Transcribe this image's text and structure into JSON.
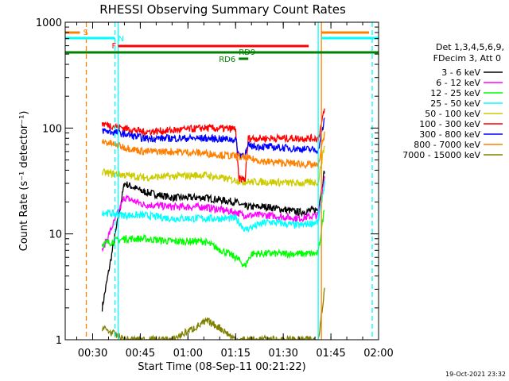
{
  "chart_data": {
    "type": "line",
    "title": "RHESSI Observing Summary Count Rates",
    "xlabel": "Start Time (08-Sep-11 00:21:22)",
    "ylabel": "Count Rate (s⁻¹ detector⁻¹)",
    "y_scale": "log",
    "ylim": [
      1,
      1000
    ],
    "xlim": [
      "00:21:22",
      "02:00:00"
    ],
    "x_ticks": [
      "00:30",
      "00:45",
      "01:00",
      "01:15",
      "01:30",
      "01:45",
      "02:00"
    ],
    "y_ticks": [
      "1",
      "10",
      "100",
      "1000"
    ],
    "timestamp": "19-Oct-2021 23:32",
    "legend": {
      "header1": "Det 1,3,4,5,6,9,",
      "header2": "FDecim 3, Att 0"
    },
    "series": [
      {
        "name": "3 - 6 keV",
        "color": "#000000",
        "points": [
          [
            "00:33",
            2
          ],
          [
            "00:40",
            30
          ],
          [
            "00:46",
            25
          ],
          [
            "00:55",
            22
          ],
          [
            "01:05",
            22
          ],
          [
            "01:15",
            20
          ],
          [
            "01:18",
            18
          ],
          [
            "01:25",
            18
          ],
          [
            "01:35",
            16
          ],
          [
            "01:41",
            17
          ],
          [
            "01:43",
            40
          ]
        ]
      },
      {
        "name": "6 - 12 keV",
        "color": "#ff00ff",
        "points": [
          [
            "00:33",
            7
          ],
          [
            "00:40",
            22
          ],
          [
            "00:46",
            19
          ],
          [
            "00:55",
            18
          ],
          [
            "01:05",
            18
          ],
          [
            "01:15",
            16
          ],
          [
            "01:18",
            15
          ],
          [
            "01:25",
            15
          ],
          [
            "01:35",
            14
          ],
          [
            "01:41",
            15
          ],
          [
            "01:43",
            35
          ]
        ]
      },
      {
        "name": "12 - 25 keV",
        "color": "#00ff00",
        "points": [
          [
            "00:33",
            8
          ],
          [
            "00:40",
            9
          ],
          [
            "00:46",
            9
          ],
          [
            "00:55",
            8.5
          ],
          [
            "01:05",
            8.5
          ],
          [
            "01:15",
            6
          ],
          [
            "01:18",
            5
          ],
          [
            "01:20",
            6.5
          ],
          [
            "01:30",
            6.5
          ],
          [
            "01:41",
            6.5
          ],
          [
            "01:43",
            18
          ]
        ]
      },
      {
        "name": "25 - 50 keV",
        "color": "#00ffff",
        "points": [
          [
            "00:33",
            16
          ],
          [
            "00:40",
            15
          ],
          [
            "00:46",
            15
          ],
          [
            "00:55",
            14
          ],
          [
            "01:05",
            14
          ],
          [
            "01:15",
            14
          ],
          [
            "01:18",
            11
          ],
          [
            "01:25",
            13
          ],
          [
            "01:35",
            12
          ],
          [
            "01:41",
            13
          ],
          [
            "01:43",
            30
          ]
        ]
      },
      {
        "name": "50 - 100 keV",
        "color": "#cccc00",
        "points": [
          [
            "00:33",
            38
          ],
          [
            "00:40",
            36
          ],
          [
            "00:46",
            34
          ],
          [
            "00:55",
            35
          ],
          [
            "01:05",
            36
          ],
          [
            "01:15",
            32
          ],
          [
            "01:18",
            31
          ],
          [
            "01:25",
            31
          ],
          [
            "01:35",
            30
          ],
          [
            "01:41",
            31
          ],
          [
            "01:43",
            70
          ]
        ]
      },
      {
        "name": "100 - 300 keV",
        "color": "#ff0000",
        "points": [
          [
            "00:33",
            110
          ],
          [
            "00:40",
            100
          ],
          [
            "00:46",
            92
          ],
          [
            "00:55",
            95
          ],
          [
            "01:05",
            100
          ],
          [
            "01:15",
            98
          ],
          [
            "01:16",
            33
          ],
          [
            "01:18",
            33
          ],
          [
            "01:19",
            80
          ],
          [
            "01:30",
            80
          ],
          [
            "01:41",
            80
          ],
          [
            "01:43",
            150
          ]
        ]
      },
      {
        "name": "300 - 800 keV",
        "color": "#0000ff",
        "points": [
          [
            "00:33",
            95
          ],
          [
            "00:40",
            88
          ],
          [
            "00:46",
            80
          ],
          [
            "00:55",
            80
          ],
          [
            "01:05",
            80
          ],
          [
            "01:15",
            78
          ],
          [
            "01:16",
            56
          ],
          [
            "01:18",
            56
          ],
          [
            "01:19",
            68
          ],
          [
            "01:30",
            65
          ],
          [
            "01:41",
            62
          ],
          [
            "01:43",
            120
          ]
        ]
      },
      {
        "name": "800 - 7000 keV",
        "color": "#ff8000",
        "points": [
          [
            "00:33",
            75
          ],
          [
            "00:40",
            66
          ],
          [
            "00:46",
            60
          ],
          [
            "00:55",
            60
          ],
          [
            "01:05",
            58
          ],
          [
            "01:15",
            54
          ],
          [
            "01:18",
            52
          ],
          [
            "01:25",
            48
          ],
          [
            "01:35",
            46
          ],
          [
            "01:41",
            44
          ],
          [
            "01:43",
            90
          ]
        ]
      },
      {
        "name": "7000 - 15000 keV",
        "color": "#808000",
        "points": [
          [
            "00:33",
            1.3
          ],
          [
            "00:40",
            1
          ],
          [
            "00:55",
            1
          ],
          [
            "01:06",
            1.5
          ],
          [
            "01:10",
            1.3
          ],
          [
            "01:15",
            1
          ],
          [
            "01:41",
            1
          ],
          [
            "01:43",
            3
          ]
        ]
      }
    ],
    "flags": [
      {
        "label": "S",
        "color": "#ff8000"
      },
      {
        "label": "N",
        "color": "#00ffff"
      },
      {
        "label": "F",
        "color": "#ff0000"
      },
      {
        "label": "RD9",
        "color": "#008000"
      },
      {
        "label": "RD6",
        "color": "#008000"
      }
    ]
  }
}
